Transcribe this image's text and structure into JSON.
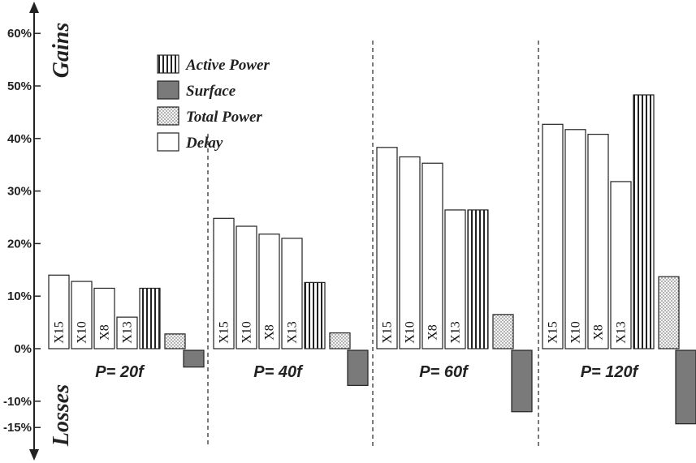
{
  "chart_data": {
    "type": "bar",
    "y_axis": {
      "ylim": [
        -15,
        65
      ],
      "ticks": [
        {
          "value": 60,
          "label": "60%"
        },
        {
          "value": 50,
          "label": "50%"
        },
        {
          "value": 40,
          "label": "40%"
        },
        {
          "value": 30,
          "label": "30%"
        },
        {
          "value": 20,
          "label": "20%"
        },
        {
          "value": 10,
          "label": "10%"
        },
        {
          "value": 0,
          "label": "0%"
        },
        {
          "value": -10,
          "label": "-10%"
        },
        {
          "value": -15,
          "label": "-15%"
        }
      ],
      "gains_label": "Gains",
      "losses_label": "Losses"
    },
    "legend": {
      "placement": "top-left",
      "entries": [
        {
          "label": "Active Power",
          "pattern": "vertical-stripes"
        },
        {
          "label": "Surface",
          "pattern": "dark-gray"
        },
        {
          "label": "Total Power",
          "pattern": "dots"
        },
        {
          "label": "Delay",
          "pattern": "white"
        }
      ]
    },
    "groups": [
      {
        "label": "P= 20f",
        "delay": [
          {
            "label": "X15",
            "value": 14
          },
          {
            "label": "X10",
            "value": 12.8
          },
          {
            "label": "X8",
            "value": 11.5
          },
          {
            "label": "X13",
            "value": 6
          }
        ],
        "active_power": 11.5,
        "total_power": 2.8,
        "surface": -3.5
      },
      {
        "label": "P= 40f",
        "delay": [
          {
            "label": "X15",
            "value": 24.8
          },
          {
            "label": "X10",
            "value": 23.3
          },
          {
            "label": "X8",
            "value": 21.8
          },
          {
            "label": "X13",
            "value": 21
          }
        ],
        "active_power": 12.6,
        "total_power": 3,
        "surface": -7
      },
      {
        "label": "P= 60f",
        "delay": [
          {
            "label": "X15",
            "value": 38.3
          },
          {
            "label": "X10",
            "value": 36.5
          },
          {
            "label": "X8",
            "value": 35.3
          },
          {
            "label": "X13",
            "value": 26.4
          }
        ],
        "active_power": 26.4,
        "total_power": 6.5,
        "surface": -12
      },
      {
        "label": "P= 120f",
        "delay": [
          {
            "label": "X15",
            "value": 42.7
          },
          {
            "label": "X10",
            "value": 41.7
          },
          {
            "label": "X8",
            "value": 40.8
          },
          {
            "label": "X13",
            "value": 31.8
          }
        ],
        "active_power": 48.3,
        "total_power": 13.7,
        "surface": -14.3
      }
    ]
  },
  "colors": {
    "surface": "#7a7a7a",
    "outline": "#222222",
    "background": "#ffffff"
  }
}
